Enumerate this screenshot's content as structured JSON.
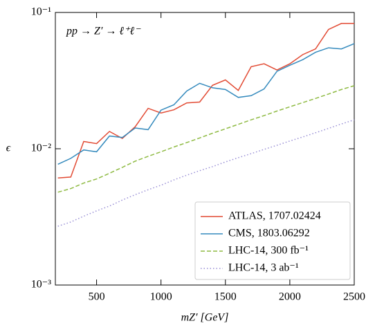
{
  "chart_data": {
    "type": "line",
    "annotation": "pp → Z′ → ℓ⁺ℓ⁻",
    "x_label": "mZ′ [GeV]",
    "y_label": "ϵ",
    "log_y": true,
    "legend": "lower right",
    "x": [
      200,
      300,
      400,
      500,
      600,
      700,
      800,
      900,
      1000,
      1100,
      1200,
      1300,
      1400,
      1500,
      1600,
      1700,
      1800,
      1900,
      2000,
      2100,
      2200,
      2300,
      2400,
      2500
    ],
    "series": [
      {
        "name": "ATLAS, 1707.02424",
        "color": "#e24a33",
        "linestyle": "solid",
        "values": [
          0.0061,
          0.0062,
          0.0113,
          0.0109,
          0.0134,
          0.0119,
          0.0145,
          0.0198,
          0.0183,
          0.0193,
          0.0217,
          0.022,
          0.0292,
          0.032,
          0.0268,
          0.04,
          0.042,
          0.0378,
          0.042,
          0.049,
          0.054,
          0.075,
          0.083,
          0.083
        ]
      },
      {
        "name": "CMS, 1803.06292",
        "color": "#348abd",
        "linestyle": "solid",
        "values": [
          0.0077,
          0.0085,
          0.0098,
          0.0095,
          0.0124,
          0.0121,
          0.0142,
          0.0138,
          0.0192,
          0.021,
          0.0265,
          0.0302,
          0.028,
          0.0272,
          0.0238,
          0.0245,
          0.0275,
          0.037,
          0.041,
          0.045,
          0.051,
          0.055,
          0.054,
          0.059
        ]
      },
      {
        "name": "LHC-14, 300 fb⁻¹",
        "color": "#8eba42",
        "linestyle": "dashed",
        "values": [
          0.0048,
          0.0051,
          0.0056,
          0.006,
          0.0066,
          0.0073,
          0.0081,
          0.0088,
          0.0095,
          0.0103,
          0.0111,
          0.012,
          0.013,
          0.014,
          0.0151,
          0.0163,
          0.0175,
          0.0189,
          0.0203,
          0.0218,
          0.0234,
          0.0252,
          0.0272,
          0.029
        ]
      },
      {
        "name": "LHC-14, 3 ab⁻¹",
        "color": "#988ed5",
        "linestyle": "dotted",
        "values": [
          0.0027,
          0.0029,
          0.0032,
          0.0035,
          0.0038,
          0.0042,
          0.0046,
          0.005,
          0.0054,
          0.0059,
          0.0064,
          0.0069,
          0.0074,
          0.008,
          0.0086,
          0.0092,
          0.0099,
          0.0106,
          0.0114,
          0.0122,
          0.0131,
          0.0141,
          0.0152,
          0.0163
        ]
      }
    ],
    "xlim": [
      180,
      2500
    ],
    "xticks": [
      500,
      1000,
      1500,
      2000,
      2500
    ],
    "ylim": [
      0.001,
      0.1
    ],
    "yticks": [
      {
        "value": 0.001,
        "label": "10⁻³"
      },
      {
        "value": 0.01,
        "label": "10⁻²"
      },
      {
        "value": 0.1,
        "label": "10⁻¹"
      }
    ]
  }
}
